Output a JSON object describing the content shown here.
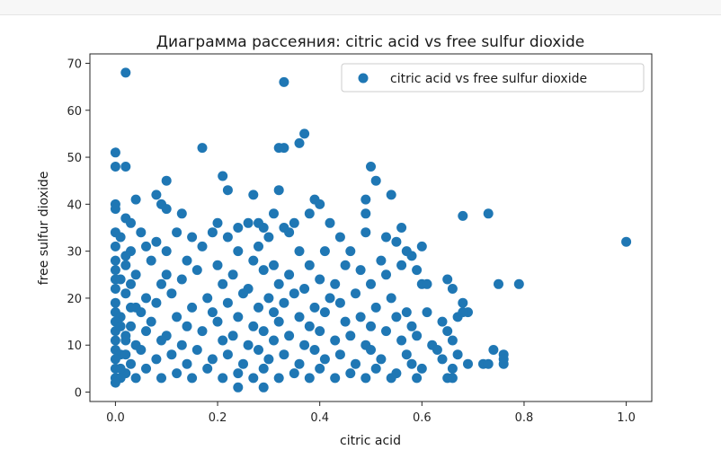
{
  "chart_data": {
    "type": "scatter",
    "title": "Диаграмма рассеяния: citric acid vs free sulfur dioxide",
    "xlabel": "citric acid",
    "ylabel": "free sulfur dioxide",
    "xlim": [
      -0.05,
      1.05
    ],
    "ylim": [
      -2,
      72
    ],
    "xticks": [
      0.0,
      0.2,
      0.4,
      0.6,
      0.8,
      1.0
    ],
    "xtick_labels": [
      "0.0",
      "0.2",
      "0.4",
      "0.6",
      "0.8",
      "1.0"
    ],
    "yticks": [
      0,
      10,
      20,
      30,
      40,
      50,
      60,
      70
    ],
    "ytick_labels": [
      "0",
      "10",
      "20",
      "30",
      "40",
      "50",
      "60",
      "70"
    ],
    "grid": false,
    "legend_position": "top-right",
    "marker_color": "#1f77b4",
    "series": [
      {
        "name": "citric acid vs free sulfur dioxide",
        "points": [
          [
            0.02,
            68
          ],
          [
            0.33,
            66
          ],
          [
            0.37,
            55
          ],
          [
            0.17,
            52
          ],
          [
            0.32,
            52
          ],
          [
            0.33,
            52
          ],
          [
            0.36,
            53
          ],
          [
            0.0,
            51
          ],
          [
            0.0,
            48
          ],
          [
            0.02,
            48
          ],
          [
            0.5,
            48
          ],
          [
            0.51,
            45
          ],
          [
            0.1,
            45
          ],
          [
            0.21,
            46
          ],
          [
            0.22,
            43
          ],
          [
            0.32,
            43
          ],
          [
            0.27,
            42
          ],
          [
            0.54,
            42
          ],
          [
            0.08,
            42
          ],
          [
            0.04,
            41
          ],
          [
            0.39,
            41
          ],
          [
            0.4,
            40
          ],
          [
            0.49,
            41
          ],
          [
            0.0,
            40
          ],
          [
            0.0,
            39
          ],
          [
            0.09,
            40
          ],
          [
            0.1,
            39
          ],
          [
            0.13,
            38
          ],
          [
            0.31,
            38
          ],
          [
            0.29,
            35
          ],
          [
            0.38,
            38
          ],
          [
            0.49,
            38
          ],
          [
            0.68,
            37.5
          ],
          [
            0.73,
            38
          ],
          [
            1.0,
            32
          ],
          [
            0.02,
            37
          ],
          [
            0.03,
            36
          ],
          [
            0.05,
            34
          ],
          [
            0.12,
            34
          ],
          [
            0.2,
            36
          ],
          [
            0.24,
            35
          ],
          [
            0.26,
            36
          ],
          [
            0.28,
            36
          ],
          [
            0.33,
            35
          ],
          [
            0.35,
            36
          ],
          [
            0.42,
            36
          ],
          [
            0.56,
            35
          ],
          [
            0.0,
            34
          ],
          [
            0.01,
            33
          ],
          [
            0.08,
            32
          ],
          [
            0.15,
            33
          ],
          [
            0.19,
            34
          ],
          [
            0.22,
            33
          ],
          [
            0.3,
            33
          ],
          [
            0.34,
            34
          ],
          [
            0.44,
            33
          ],
          [
            0.49,
            34
          ],
          [
            0.53,
            33
          ],
          [
            0.55,
            32
          ],
          [
            0.6,
            31
          ],
          [
            0.0,
            31
          ],
          [
            0.03,
            30
          ],
          [
            0.06,
            31
          ],
          [
            0.1,
            30
          ],
          [
            0.17,
            31
          ],
          [
            0.24,
            30
          ],
          [
            0.28,
            31
          ],
          [
            0.36,
            30
          ],
          [
            0.41,
            30
          ],
          [
            0.46,
            30
          ],
          [
            0.57,
            30
          ],
          [
            0.58,
            29
          ],
          [
            0.0,
            28
          ],
          [
            0.02,
            27
          ],
          [
            0.07,
            28
          ],
          [
            0.14,
            28
          ],
          [
            0.2,
            27
          ],
          [
            0.27,
            28
          ],
          [
            0.31,
            27
          ],
          [
            0.38,
            27
          ],
          [
            0.45,
            27
          ],
          [
            0.52,
            28
          ],
          [
            0.56,
            27
          ],
          [
            0.0,
            26
          ],
          [
            0.04,
            25
          ],
          [
            0.1,
            25
          ],
          [
            0.16,
            26
          ],
          [
            0.23,
            25
          ],
          [
            0.29,
            26
          ],
          [
            0.34,
            25
          ],
          [
            0.4,
            24
          ],
          [
            0.48,
            26
          ],
          [
            0.53,
            25
          ],
          [
            0.59,
            26
          ],
          [
            0.0,
            24
          ],
          [
            0.03,
            23
          ],
          [
            0.09,
            23
          ],
          [
            0.13,
            24
          ],
          [
            0.21,
            23
          ],
          [
            0.26,
            22
          ],
          [
            0.32,
            23
          ],
          [
            0.37,
            22
          ],
          [
            0.43,
            23
          ],
          [
            0.5,
            23
          ],
          [
            0.6,
            23
          ],
          [
            0.61,
            23
          ],
          [
            0.65,
            24
          ],
          [
            0.75,
            23
          ],
          [
            0.79,
            23
          ],
          [
            0.0,
            22
          ],
          [
            0.02,
            21
          ],
          [
            0.06,
            20
          ],
          [
            0.11,
            21
          ],
          [
            0.18,
            20
          ],
          [
            0.25,
            21
          ],
          [
            0.3,
            20
          ],
          [
            0.35,
            21
          ],
          [
            0.42,
            20
          ],
          [
            0.47,
            21
          ],
          [
            0.54,
            20
          ],
          [
            0.66,
            22
          ],
          [
            0.0,
            19
          ],
          [
            0.04,
            18
          ],
          [
            0.08,
            19
          ],
          [
            0.15,
            18
          ],
          [
            0.22,
            19
          ],
          [
            0.28,
            18
          ],
          [
            0.33,
            19
          ],
          [
            0.39,
            18
          ],
          [
            0.44,
            19
          ],
          [
            0.51,
            18
          ],
          [
            0.57,
            17
          ],
          [
            0.68,
            19
          ],
          [
            0.69,
            17
          ],
          [
            0.0,
            17
          ],
          [
            0.01,
            16
          ],
          [
            0.05,
            17
          ],
          [
            0.12,
            16
          ],
          [
            0.19,
            17
          ],
          [
            0.24,
            16
          ],
          [
            0.31,
            17
          ],
          [
            0.36,
            16
          ],
          [
            0.41,
            17
          ],
          [
            0.48,
            16
          ],
          [
            0.55,
            16
          ],
          [
            0.61,
            17
          ],
          [
            0.67,
            16
          ],
          [
            0.68,
            17
          ],
          [
            0.0,
            15
          ],
          [
            0.03,
            14
          ],
          [
            0.07,
            15
          ],
          [
            0.14,
            14
          ],
          [
            0.2,
            15
          ],
          [
            0.27,
            14
          ],
          [
            0.32,
            15
          ],
          [
            0.38,
            14
          ],
          [
            0.45,
            15
          ],
          [
            0.5,
            14
          ],
          [
            0.58,
            14
          ],
          [
            0.64,
            15
          ],
          [
            0.0,
            13
          ],
          [
            0.02,
            12
          ],
          [
            0.06,
            13
          ],
          [
            0.1,
            12
          ],
          [
            0.17,
            13
          ],
          [
            0.23,
            12
          ],
          [
            0.29,
            13
          ],
          [
            0.34,
            12
          ],
          [
            0.4,
            13
          ],
          [
            0.46,
            12
          ],
          [
            0.53,
            13
          ],
          [
            0.59,
            12
          ],
          [
            0.65,
            13
          ],
          [
            0.0,
            11
          ],
          [
            0.04,
            10
          ],
          [
            0.09,
            11
          ],
          [
            0.13,
            10
          ],
          [
            0.21,
            11
          ],
          [
            0.26,
            10
          ],
          [
            0.31,
            11
          ],
          [
            0.37,
            10
          ],
          [
            0.43,
            11
          ],
          [
            0.49,
            10
          ],
          [
            0.56,
            11
          ],
          [
            0.62,
            10
          ],
          [
            0.66,
            11
          ],
          [
            0.0,
            9
          ],
          [
            0.01,
            8
          ],
          [
            0.05,
            9
          ],
          [
            0.11,
            8
          ],
          [
            0.16,
            9
          ],
          [
            0.22,
            8
          ],
          [
            0.28,
            9
          ],
          [
            0.33,
            8
          ],
          [
            0.39,
            9
          ],
          [
            0.44,
            8
          ],
          [
            0.5,
            9
          ],
          [
            0.57,
            8
          ],
          [
            0.63,
            9
          ],
          [
            0.67,
            8
          ],
          [
            0.74,
            9
          ],
          [
            0.76,
            8
          ],
          [
            0.0,
            7
          ],
          [
            0.03,
            6
          ],
          [
            0.08,
            7
          ],
          [
            0.14,
            6
          ],
          [
            0.19,
            7
          ],
          [
            0.25,
            6
          ],
          [
            0.3,
            7
          ],
          [
            0.36,
            6
          ],
          [
            0.41,
            7
          ],
          [
            0.47,
            6
          ],
          [
            0.52,
            7
          ],
          [
            0.58,
            6
          ],
          [
            0.64,
            7
          ],
          [
            0.69,
            6
          ],
          [
            0.72,
            6
          ],
          [
            0.76,
            7
          ],
          [
            0.0,
            5
          ],
          [
            0.02,
            4
          ],
          [
            0.06,
            5
          ],
          [
            0.12,
            4
          ],
          [
            0.18,
            5
          ],
          [
            0.24,
            4
          ],
          [
            0.29,
            5
          ],
          [
            0.35,
            4
          ],
          [
            0.4,
            5
          ],
          [
            0.46,
            4
          ],
          [
            0.51,
            5
          ],
          [
            0.55,
            4
          ],
          [
            0.6,
            5
          ],
          [
            0.66,
            5
          ],
          [
            0.73,
            6
          ],
          [
            0.76,
            6
          ],
          [
            0.0,
            3
          ],
          [
            0.01,
            3
          ],
          [
            0.04,
            3
          ],
          [
            0.09,
            3
          ],
          [
            0.15,
            3
          ],
          [
            0.21,
            3
          ],
          [
            0.27,
            3
          ],
          [
            0.32,
            3
          ],
          [
            0.38,
            3
          ],
          [
            0.43,
            3
          ],
          [
            0.49,
            3
          ],
          [
            0.54,
            3
          ],
          [
            0.59,
            3
          ],
          [
            0.65,
            3
          ],
          [
            0.66,
            3
          ],
          [
            0.24,
            1
          ],
          [
            0.29,
            1
          ],
          [
            0.0,
            2
          ],
          [
            0.01,
            5
          ],
          [
            0.02,
            11
          ],
          [
            0.03,
            18
          ],
          [
            0.01,
            24
          ],
          [
            0.02,
            29
          ],
          [
            0.01,
            14
          ],
          [
            0.02,
            8
          ]
        ]
      }
    ]
  }
}
